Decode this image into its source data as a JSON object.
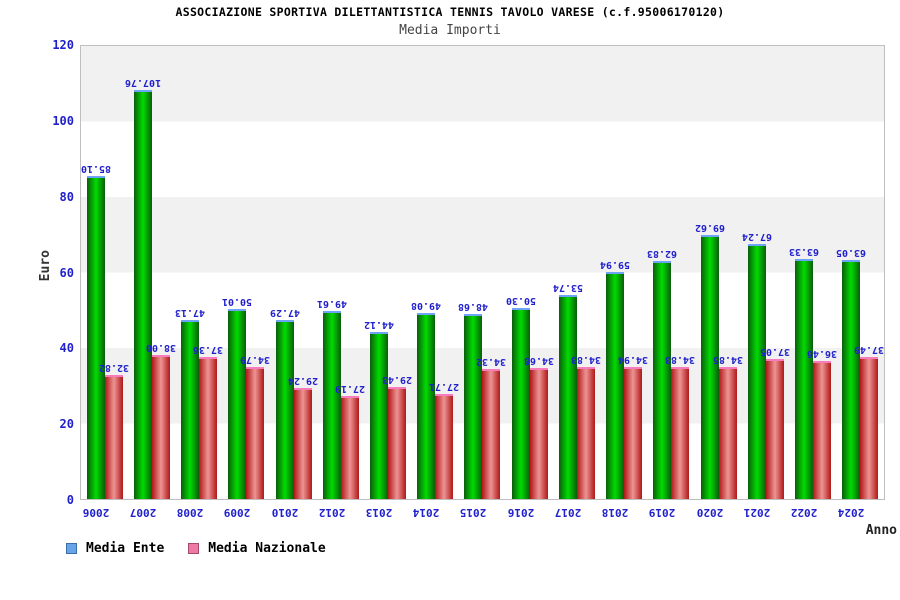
{
  "header": {
    "title": "ASSOCIAZIONE SPORTIVA DILETTANTISTICA TENNIS TAVOLO VARESE (c.f.95006170120)",
    "subtitle": "Media Importi"
  },
  "chart_data": {
    "type": "bar",
    "title": "ASSOCIAZIONE SPORTIVA DILETTANTISTICA TENNIS TAVOLO VARESE (c.f.95006170120)",
    "subtitle": "Media Importi",
    "xlabel": "Anno",
    "ylabel": "Euro",
    "ylim": [
      0,
      120
    ],
    "yticks": [
      0,
      20,
      40,
      60,
      80,
      100,
      120
    ],
    "grid": "alternating-horizontal-bands",
    "legend_position": "bottom-left",
    "value_label_format": "2-decimals-rotated-90",
    "categories": [
      "2006",
      "2007",
      "2008",
      "2009",
      "2010",
      "2012",
      "2013",
      "2014",
      "2015",
      "2016",
      "2017",
      "2018",
      "2019",
      "2020",
      "2021",
      "2022",
      "2024"
    ],
    "series": [
      {
        "name": "Media Ente",
        "values": [
          85.1,
          107.76,
          47.13,
          50.01,
          47.29,
          49.61,
          44.12,
          49.08,
          48.68,
          50.3,
          53.74,
          59.94,
          62.83,
          69.62,
          67.24,
          63.33,
          63.05
        ]
      },
      {
        "name": "Media Nazionale",
        "values": [
          32.82,
          38.0,
          37.36,
          34.79,
          29.24,
          27.19,
          29.43,
          27.71,
          34.32,
          34.68,
          34.83,
          34.94,
          34.83,
          34.85,
          37.05,
          36.46,
          37.49
        ]
      }
    ]
  },
  "colors": {
    "bar_ente_center": "#00dc00",
    "bar_ente_edge": "#0b5e0b",
    "bar_ente_cap": "#6fa3f8",
    "bar_naz_center": "#ee9494",
    "bar_naz_edge": "#b01818",
    "bar_naz_cap": "#f87bbd",
    "legend_swatch_ente": "#66a3e8",
    "legend_swatch_naz": "#ee7aa3",
    "label_text": "#2020cc",
    "band_gray": "#f1f1f1",
    "plot_border": "#bfbfbf"
  }
}
